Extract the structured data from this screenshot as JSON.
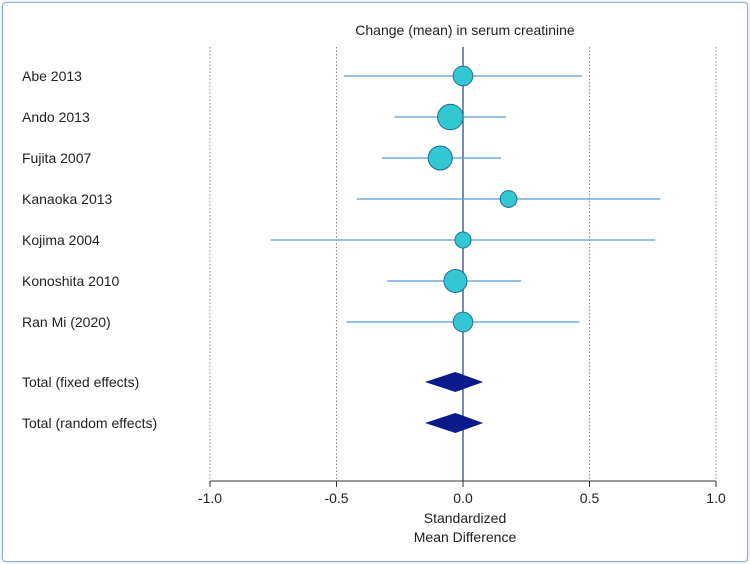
{
  "chart_data": {
    "type": "forest",
    "title": "Change (mean) in serum creatinine",
    "xlabel_line1": "Standardized",
    "xlabel_line2": "Mean Difference",
    "xlim": [
      -1.0,
      1.0
    ],
    "xticks": [
      -1.0,
      -0.5,
      0.0,
      0.5,
      1.0
    ],
    "xtick_labels": [
      "-1.0",
      "-0.5",
      "0.0",
      "0.5",
      "1.0"
    ],
    "studies": [
      {
        "name": "Abe 2013",
        "estimate": 0.0,
        "lower": -0.47,
        "upper": 0.47,
        "weight": 12
      },
      {
        "name": "Ando 2013",
        "estimate": -0.05,
        "lower": -0.27,
        "upper": 0.17,
        "weight": 23
      },
      {
        "name": "Fujita 2007",
        "estimate": -0.09,
        "lower": -0.32,
        "upper": 0.15,
        "weight": 20
      },
      {
        "name": "Kanaoka 2013",
        "estimate": 0.18,
        "lower": -0.42,
        "upper": 0.78,
        "weight": 8
      },
      {
        "name": "Kojima 2004",
        "estimate": 0.0,
        "lower": -0.76,
        "upper": 0.76,
        "weight": 7
      },
      {
        "name": "Konoshita 2010",
        "estimate": -0.03,
        "lower": -0.3,
        "upper": 0.23,
        "weight": 18
      },
      {
        "name": "Ran Mi (2020)",
        "estimate": 0.0,
        "lower": -0.46,
        "upper": 0.46,
        "weight": 12
      }
    ],
    "totals": [
      {
        "name": "Total (fixed effects)",
        "estimate": -0.03,
        "lower": -0.15,
        "upper": 0.08
      },
      {
        "name": "Total (random effects)",
        "estimate": -0.03,
        "lower": -0.15,
        "upper": 0.08
      }
    ],
    "colors": {
      "ci_line": "#5b9bd5",
      "marker_fill": "#33c7d3",
      "marker_stroke": "#1f6f8a",
      "diamond": "#0a1a8a",
      "axis": "#333333",
      "grid": "#888888",
      "zero_line": "#2a4f8f"
    }
  }
}
